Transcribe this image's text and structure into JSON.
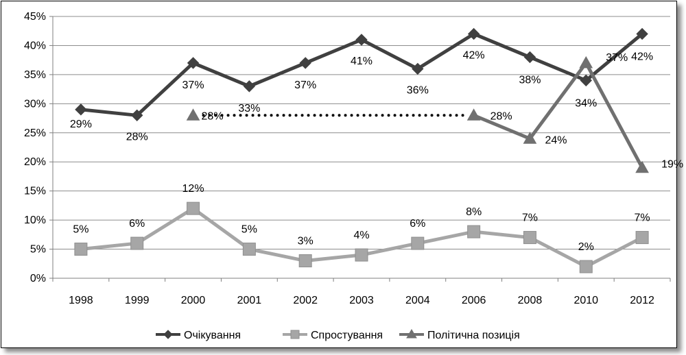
{
  "chart_data": {
    "type": "line",
    "title": "",
    "xlabel": "",
    "ylabel": "",
    "categories": [
      "1998",
      "1999",
      "2000",
      "2001",
      "2002",
      "2003",
      "2004",
      "2006",
      "2008",
      "2010",
      "2012"
    ],
    "ylim": [
      0,
      45
    ],
    "ytick_step": 5,
    "ytick_labels": [
      "0%",
      "5%",
      "10%",
      "15%",
      "20%",
      "25%",
      "30%",
      "35%",
      "40%",
      "45%"
    ],
    "grid": true,
    "legend_position": "bottom",
    "series": [
      {
        "name": "Очікування",
        "color": "#404040",
        "marker": "diamond",
        "values": [
          29,
          28,
          37,
          33,
          37,
          41,
          36,
          42,
          38,
          34,
          42
        ],
        "labels": [
          "29%",
          "28%",
          "37%",
          "33%",
          "37%",
          "41%",
          "36%",
          "42%",
          "38%",
          "34%",
          "42%"
        ]
      },
      {
        "name": "Спростування",
        "color": "#a6a6a6",
        "marker": "square",
        "values": [
          5,
          6,
          12,
          5,
          3,
          4,
          6,
          8,
          7,
          2,
          7
        ],
        "labels": [
          "5%",
          "6%",
          "12%",
          "5%",
          "3%",
          "4%",
          "6%",
          "8%",
          "7%",
          "2%",
          "7%"
        ]
      },
      {
        "name": "Політична позиція",
        "color": "#707070",
        "marker": "triangle",
        "values": [
          null,
          null,
          28,
          null,
          null,
          null,
          null,
          28,
          24,
          37,
          19
        ],
        "labels": [
          "",
          "",
          "28%",
          "",
          "",
          "",
          "",
          "28%",
          "24%",
          "37%",
          "19%"
        ],
        "dotted_gap": [
          2,
          7
        ]
      }
    ]
  }
}
